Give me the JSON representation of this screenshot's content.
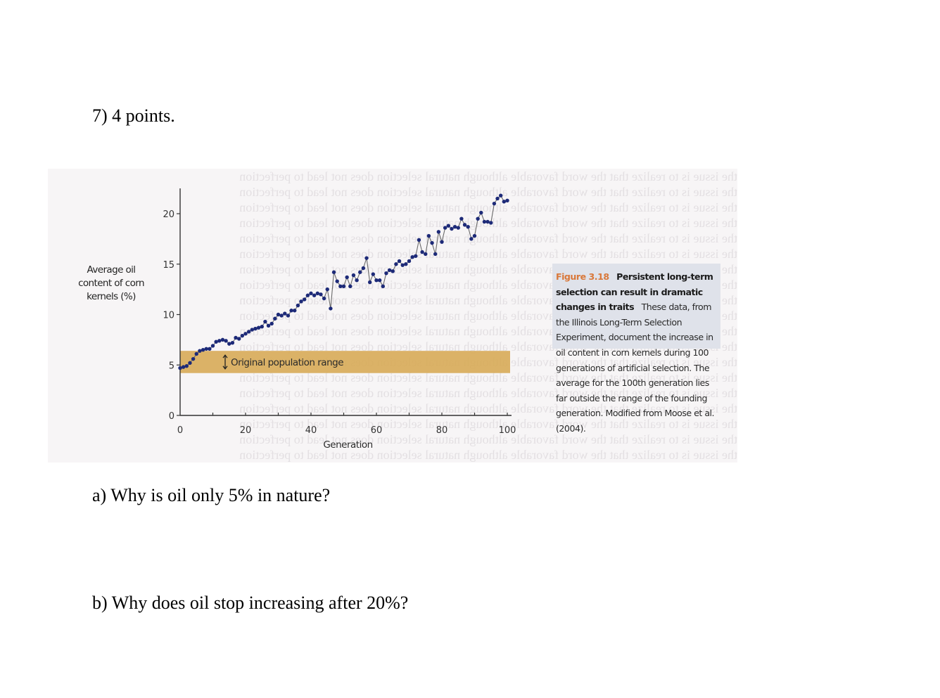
{
  "question": {
    "title": "7) 4 points.",
    "part_a": "a) Why is oil only 5% in nature?",
    "part_b": "b) Why does oil stop increasing after 20%?"
  },
  "figure": {
    "caption_number": "Figure 3.18",
    "caption_title": "Persistent long-term selection can result in dramatic changes in traits",
    "caption_body": "These data, from the Illinois Long-Term Selection Experiment, document the increase in oil content in corn kernels during 100 generations of artificial selection. The average for the 100th generation lies far outside the range of the founding generation. Modified from Moose et al. (2004).",
    "band_label": "Original population range",
    "colors": {
      "band": "#d8ab5a",
      "points": "#1d2a78",
      "line": "#6a6a6a",
      "caption_number": "#d9783a",
      "caption_bg": "#dfe2ea"
    }
  },
  "chart_data": {
    "type": "line",
    "title": "",
    "xlabel": "Generation",
    "ylabel": "Average oil content of corn kernels (%)",
    "xlim": [
      0,
      100
    ],
    "ylim": [
      0,
      22
    ],
    "x_ticks": [
      0,
      20,
      40,
      60,
      80,
      100
    ],
    "y_ticks": [
      0,
      5,
      10,
      15,
      20
    ],
    "x_tick_labels": [
      "0",
      "20",
      "40",
      "60",
      "80",
      "100"
    ],
    "y_tick_labels": [
      "0",
      "5",
      "10",
      "15",
      "20"
    ],
    "grid": false,
    "legend": null,
    "annotations": [
      {
        "type": "band",
        "y_from": 4.2,
        "y_to": 6.4,
        "x_from": 0,
        "x_to": 100,
        "label": "Original population range"
      }
    ],
    "series": [
      {
        "name": "Average oil content",
        "x": [
          0,
          1,
          2,
          3,
          4,
          5,
          6,
          7,
          8,
          9,
          10,
          11,
          12,
          13,
          14,
          15,
          16,
          17,
          18,
          19,
          20,
          21,
          22,
          23,
          24,
          25,
          26,
          27,
          28,
          29,
          30,
          31,
          32,
          33,
          34,
          35,
          36,
          37,
          38,
          39,
          40,
          41,
          42,
          43,
          44,
          45,
          46,
          47,
          48,
          49,
          50,
          51,
          52,
          53,
          54,
          55,
          56,
          57,
          58,
          59,
          60,
          61,
          62,
          63,
          64,
          65,
          66,
          67,
          68,
          69,
          70,
          71,
          72,
          73,
          74,
          75,
          76,
          77,
          78,
          79,
          80,
          81,
          82,
          83,
          84,
          85,
          86,
          87,
          88,
          89,
          90,
          91,
          92,
          93,
          94,
          95,
          96,
          97,
          98,
          99,
          100
        ],
        "values": [
          4.7,
          4.8,
          4.9,
          5.2,
          5.6,
          6.1,
          6.4,
          6.5,
          6.6,
          6.6,
          6.9,
          7.3,
          7.4,
          7.5,
          7.4,
          7.1,
          7.2,
          7.7,
          7.6,
          7.9,
          8.1,
          8.3,
          8.5,
          8.6,
          8.7,
          8.8,
          9.3,
          8.9,
          9.1,
          9.6,
          10.0,
          9.9,
          10.1,
          9.9,
          10.4,
          10.4,
          10.9,
          11.3,
          11.5,
          11.9,
          12.1,
          11.9,
          12.1,
          12.0,
          11.6,
          12.5,
          10.6,
          14.2,
          13.3,
          12.8,
          12.8,
          13.7,
          12.8,
          13.9,
          13.4,
          14.2,
          14.6,
          15.6,
          13.2,
          14.0,
          13.4,
          13.4,
          12.8,
          14.1,
          14.4,
          14.3,
          15.0,
          15.3,
          14.9,
          15.0,
          15.3,
          15.7,
          15.8,
          17.4,
          16.2,
          16.0,
          17.8,
          17.1,
          16.0,
          18.2,
          17.2,
          18.6,
          18.8,
          18.5,
          18.7,
          18.6,
          19.5,
          18.9,
          18.7,
          17.5,
          17.8,
          19.5,
          20.1,
          19.2,
          19.2,
          19.1,
          21.0,
          21.5,
          21.8,
          21.2,
          21.3
        ]
      }
    ]
  }
}
